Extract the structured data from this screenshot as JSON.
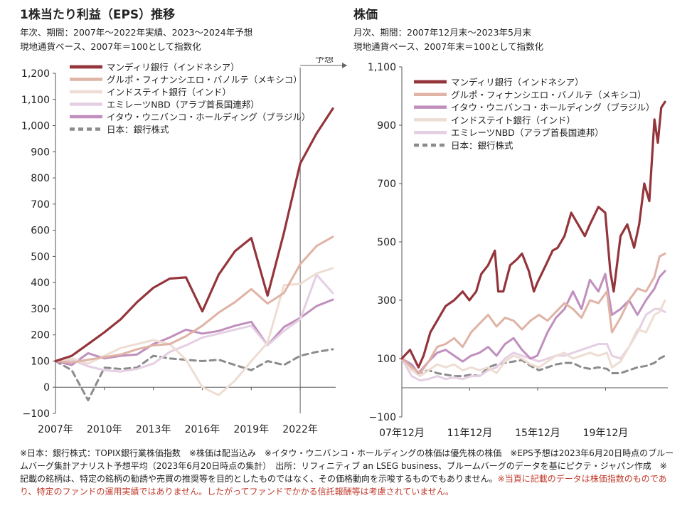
{
  "left": {
    "title": "1株当たり利益（EPS）推移",
    "sub1": "年次、期間：2007年～2022年実績、2023～2024年予想",
    "sub2": "現地通貨ベース、2007年＝100として指数化",
    "forecast_label": "予想"
  },
  "right": {
    "title": "株価",
    "sub1": "月次、期間：2007年12月末～2023年5月末",
    "sub2": "現地通貨ベース、2007年末＝100として指数化"
  },
  "notes": {
    "text": "※日本：銀行株式：TOPIX銀行業株価指数　※株価は配当込み　※イタウ・ウニバンコ・ホールディングの株価は優先株の株価　※EPS予想は2023年6月20日時点のブルームバーグ集計アナリスト予想平均（2023年6月20日時点の集計）　出所：リフィニティブ an LSEG business、ブルームバーグのデータを基にピクテ・ジャパン作成　※記載の銘柄は、特定の銘柄の勧誘や売買の推奨等を目的としたものではなく、その価格動向を示唆するものでもありません。",
    "red_text": "※当頁に記載のデータは株価指数のものであり、特定のファンドの運用実績ではありません。したがってファンドでかかる信託報酬等は考慮されていません。"
  },
  "chart_data": [
    {
      "type": "line",
      "title": "1株当たり利益（EPS）推移",
      "x": [
        2007,
        2008,
        2009,
        2010,
        2011,
        2012,
        2013,
        2014,
        2015,
        2016,
        2017,
        2018,
        2019,
        2020,
        2021,
        2022,
        2023,
        2024
      ],
      "x_tick_labels": [
        "2007年",
        "2010年",
        "2013年",
        "2016年",
        "2019年",
        "2022年"
      ],
      "x_ticks": [
        2007,
        2010,
        2013,
        2016,
        2019,
        2022
      ],
      "ylim": [
        -100,
        1200
      ],
      "y_ticks": [
        -100,
        0,
        100,
        200,
        300,
        400,
        500,
        600,
        700,
        800,
        900,
        1000,
        1100,
        1200
      ],
      "y_tick_labels": [
        "−100",
        "0",
        "100",
        "200",
        "300",
        "400",
        "500",
        "600",
        "700",
        "800",
        "900",
        "1,000",
        "1,100",
        "1,200"
      ],
      "forecast_from": 2022,
      "grid": false,
      "legend": "top-left",
      "series": [
        {
          "name": "マンディリ銀行（インドネシア）",
          "color": "#94353b",
          "width": 3.2,
          "values": [
            100,
            120,
            165,
            210,
            260,
            325,
            380,
            415,
            420,
            290,
            430,
            520,
            570,
            350,
            590,
            855,
            970,
            1065
          ]
        },
        {
          "name": "グルポ・フィナンシエロ・バノルテ（メキシコ）",
          "color": "#dfb3a5",
          "width": 3,
          "values": [
            100,
            95,
            105,
            115,
            125,
            145,
            160,
            165,
            195,
            235,
            285,
            325,
            375,
            320,
            360,
            470,
            540,
            575
          ]
        },
        {
          "name": "インドステイト銀行（インド）",
          "color": "#eeddd3",
          "width": 3,
          "values": [
            100,
            110,
            90,
            120,
            150,
            165,
            180,
            165,
            105,
            0,
            -30,
            25,
            100,
            170,
            390,
            395,
            435,
            455
          ]
        },
        {
          "name": "エミレーツNBD（アラブ首長国連邦）",
          "color": "#e5cfe3",
          "width": 3,
          "values": [
            100,
            105,
            80,
            65,
            60,
            70,
            90,
            135,
            160,
            190,
            205,
            220,
            235,
            160,
            215,
            260,
            430,
            360
          ]
        },
        {
          "name": "イタウ・ウニバンコ・ホールディング（ブラジル）",
          "color": "#c08fbd",
          "width": 3,
          "values": [
            100,
            85,
            130,
            110,
            120,
            125,
            165,
            190,
            220,
            205,
            215,
            235,
            250,
            160,
            230,
            265,
            310,
            335
          ]
        },
        {
          "name": "日本：銀行株式",
          "color": "#8c8c8c",
          "width": 3,
          "dash": "8,6",
          "values": [
            100,
            65,
            -50,
            75,
            70,
            75,
            120,
            110,
            105,
            100,
            105,
            85,
            65,
            100,
            85,
            120,
            135,
            145
          ]
        }
      ]
    },
    {
      "type": "line",
      "title": "株価",
      "x_tick_labels": [
        "07年12月",
        "11年12月",
        "15年12月",
        "19年12月"
      ],
      "x_ticks": [
        2007.92,
        2011.92,
        2015.92,
        2019.92
      ],
      "xlim": [
        2007.92,
        2023.42
      ],
      "ylim": [
        -100,
        1100
      ],
      "y_ticks": [
        -100,
        100,
        300,
        500,
        700,
        900,
        1100
      ],
      "y_tick_labels": [
        "−100",
        "100",
        "300",
        "500",
        "700",
        "900",
        "1,100"
      ],
      "grid": false,
      "legend": "top-left",
      "series": [
        {
          "name": "マンディリ銀行（インドネシア）",
          "color": "#94353b",
          "width": 3.2,
          "x": [
            2007.92,
            2008.4,
            2008.9,
            2009.2,
            2009.6,
            2010.0,
            2010.5,
            2011.0,
            2011.5,
            2011.9,
            2012.3,
            2012.6,
            2013.0,
            2013.4,
            2013.6,
            2013.9,
            2014.3,
            2014.7,
            2015.0,
            2015.4,
            2015.7,
            2015.9,
            2016.4,
            2016.8,
            2017.1,
            2017.5,
            2017.9,
            2018.3,
            2018.7,
            2019.0,
            2019.5,
            2019.9,
            2020.2,
            2020.4,
            2020.8,
            2021.2,
            2021.6,
            2021.9,
            2022.2,
            2022.5,
            2022.8,
            2023.0,
            2023.2,
            2023.42
          ],
          "y": [
            100,
            130,
            70,
            110,
            190,
            230,
            280,
            300,
            330,
            300,
            330,
            390,
            420,
            470,
            330,
            330,
            420,
            440,
            460,
            400,
            330,
            360,
            420,
            470,
            480,
            520,
            600,
            560,
            520,
            560,
            620,
            600,
            400,
            330,
            520,
            560,
            480,
            560,
            700,
            640,
            920,
            840,
            960,
            980
          ]
        },
        {
          "name": "グルポ・フィナンシエロ・バノルテ（メキシコ）",
          "color": "#dfb3a5",
          "width": 3,
          "x": [
            2007.92,
            2008.5,
            2009.0,
            2009.5,
            2010.0,
            2010.5,
            2011.0,
            2011.5,
            2012.0,
            2012.5,
            2013.0,
            2013.5,
            2014.0,
            2014.5,
            2015.0,
            2015.5,
            2016.0,
            2016.5,
            2017.0,
            2017.5,
            2018.0,
            2018.5,
            2019.0,
            2019.5,
            2020.0,
            2020.3,
            2020.8,
            2021.3,
            2021.8,
            2022.3,
            2022.8,
            2023.1,
            2023.42
          ],
          "y": [
            100,
            70,
            50,
            90,
            140,
            150,
            170,
            140,
            190,
            220,
            250,
            210,
            240,
            230,
            200,
            230,
            250,
            230,
            260,
            290,
            270,
            240,
            300,
            290,
            330,
            190,
            240,
            300,
            340,
            330,
            380,
            450,
            460
          ]
        },
        {
          "name": "イタウ・ウニバンコ・ホールディング（ブラジル）",
          "color": "#c08fbd",
          "width": 3,
          "x": [
            2007.92,
            2008.5,
            2008.9,
            2009.5,
            2010.0,
            2010.5,
            2011.0,
            2011.5,
            2012.0,
            2012.5,
            2013.0,
            2013.5,
            2014.0,
            2014.5,
            2015.0,
            2015.5,
            2015.9,
            2016.5,
            2017.0,
            2017.5,
            2018.0,
            2018.5,
            2019.0,
            2019.5,
            2019.9,
            2020.3,
            2020.8,
            2021.3,
            2021.8,
            2022.3,
            2022.8,
            2023.1,
            2023.42
          ],
          "y": [
            100,
            80,
            50,
            90,
            120,
            130,
            110,
            90,
            110,
            120,
            140,
            110,
            150,
            170,
            130,
            100,
            110,
            190,
            240,
            270,
            330,
            270,
            370,
            330,
            390,
            250,
            270,
            300,
            250,
            300,
            340,
            380,
            400
          ]
        },
        {
          "name": "インドステイト銀行（インド）",
          "color": "#eeddd3",
          "width": 3,
          "x": [
            2007.92,
            2008.5,
            2009.0,
            2009.5,
            2010.0,
            2010.5,
            2011.0,
            2011.5,
            2012.0,
            2012.5,
            2013.0,
            2013.5,
            2014.0,
            2014.5,
            2015.0,
            2015.5,
            2016.0,
            2016.5,
            2017.0,
            2017.5,
            2018.0,
            2018.5,
            2019.0,
            2019.5,
            2020.0,
            2020.3,
            2020.8,
            2021.3,
            2021.8,
            2022.3,
            2022.8,
            2023.1,
            2023.42
          ],
          "y": [
            100,
            60,
            40,
            60,
            80,
            70,
            80,
            60,
            70,
            60,
            70,
            50,
            90,
            110,
            100,
            80,
            70,
            90,
            110,
            120,
            100,
            110,
            120,
            110,
            120,
            70,
            90,
            140,
            200,
            190,
            250,
            260,
            300
          ]
        },
        {
          "name": "エミレーツNBD（アラブ首長国連邦）",
          "color": "#e5cfe3",
          "width": 3,
          "x": [
            2007.92,
            2008.5,
            2009.0,
            2009.5,
            2010.0,
            2010.5,
            2011.0,
            2011.5,
            2012.0,
            2012.5,
            2013.0,
            2013.5,
            2014.0,
            2014.5,
            2015.0,
            2015.5,
            2016.0,
            2016.5,
            2017.0,
            2017.5,
            2018.0,
            2018.5,
            2019.0,
            2019.5,
            2020.0,
            2020.3,
            2020.8,
            2021.3,
            2021.8,
            2022.3,
            2022.8,
            2023.1,
            2023.42
          ],
          "y": [
            100,
            40,
            25,
            30,
            40,
            30,
            35,
            30,
            40,
            40,
            60,
            70,
            100,
            120,
            110,
            100,
            90,
            100,
            110,
            110,
            120,
            130,
            140,
            150,
            150,
            110,
            100,
            140,
            190,
            250,
            270,
            270,
            260
          ]
        },
        {
          "name": "日本：銀行株式",
          "color": "#8c8c8c",
          "width": 3,
          "dash": "8,6",
          "x": [
            2007.92,
            2008.4,
            2008.9,
            2009.5,
            2010.0,
            2010.5,
            2011.0,
            2011.5,
            2012.0,
            2012.5,
            2013.0,
            2013.5,
            2014.0,
            2014.5,
            2015.0,
            2015.5,
            2016.0,
            2016.5,
            2017.0,
            2017.5,
            2018.0,
            2018.5,
            2019.0,
            2019.5,
            2020.0,
            2020.3,
            2020.8,
            2021.3,
            2021.8,
            2022.3,
            2022.8,
            2023.1,
            2023.42
          ],
          "y": [
            100,
            80,
            50,
            60,
            50,
            45,
            40,
            40,
            45,
            40,
            70,
            80,
            85,
            90,
            95,
            75,
            60,
            70,
            80,
            85,
            85,
            70,
            65,
            70,
            65,
            50,
            50,
            60,
            70,
            75,
            85,
            100,
            110
          ]
        }
      ]
    }
  ]
}
